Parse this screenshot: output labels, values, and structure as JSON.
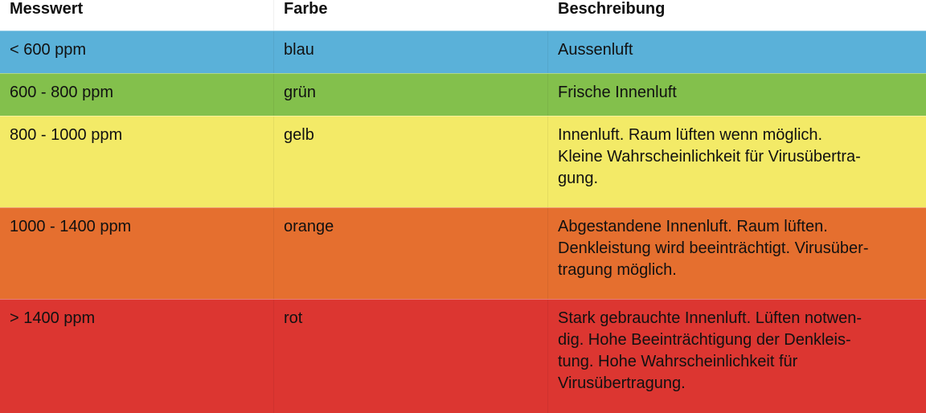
{
  "headers": [
    "Messwert",
    "Farbe",
    "Beschreibung"
  ],
  "rows": [
    {
      "messwert": "< 600 ppm",
      "farbe": "blau",
      "color": "#5ab1d9",
      "beschreibung": [
        "Aussenluft"
      ]
    },
    {
      "messwert": "600 - 800 ppm",
      "farbe": "grün",
      "color": "#83c04c",
      "beschreibung": [
        "Frische Innenluft"
      ]
    },
    {
      "messwert": "800 - 1000 ppm",
      "farbe": "gelb",
      "color": "#f3ea67",
      "beschreibung": [
        "Innenluft. Raum lüften wenn möglich.",
        "Kleine Wahrscheinlichkeit für Virusübertra-",
        "gung."
      ]
    },
    {
      "messwert": "1000 - 1400 ppm",
      "farbe": "orange",
      "color": "#e56f2f",
      "beschreibung": [
        "Abgestandene Innenluft. Raum lüften.",
        "Denkleistung wird beeinträchtigt. Virusüber-",
        "tragung möglich."
      ]
    },
    {
      "messwert": "> 1400 ppm",
      "farbe": "rot",
      "color": "#dc3631",
      "beschreibung": [
        "Stark gebrauchte Innenluft. Lüften notwen-",
        "dig. Hohe Beeinträchtigung der Denkleis-",
        "tung. Hohe Wahrscheinlichkeit für",
        "Virusübertragung."
      ]
    }
  ]
}
